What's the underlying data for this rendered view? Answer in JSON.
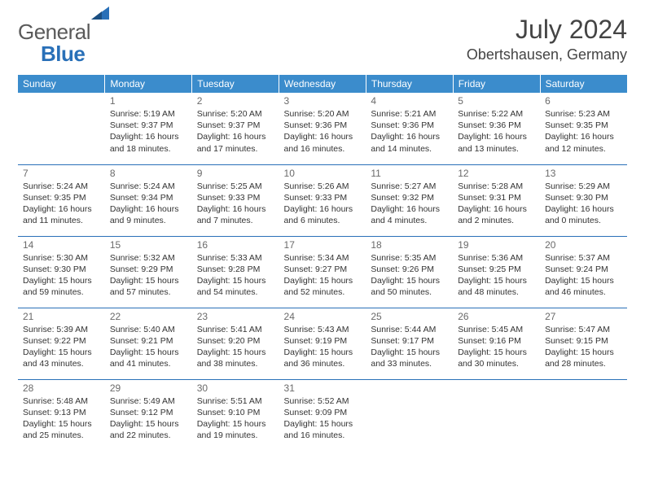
{
  "logo": {
    "general": "General",
    "blue": "Blue"
  },
  "title": "July 2024",
  "location": "Obertshausen, Germany",
  "header_bg": "#3b8ccc",
  "divider_color": "#2970b8",
  "weekdays": [
    "Sunday",
    "Monday",
    "Tuesday",
    "Wednesday",
    "Thursday",
    "Friday",
    "Saturday"
  ],
  "weeks": [
    [
      null,
      {
        "n": "1",
        "sr": "5:19 AM",
        "ss": "9:37 PM",
        "dl": "16 hours and 18 minutes."
      },
      {
        "n": "2",
        "sr": "5:20 AM",
        "ss": "9:37 PM",
        "dl": "16 hours and 17 minutes."
      },
      {
        "n": "3",
        "sr": "5:20 AM",
        "ss": "9:36 PM",
        "dl": "16 hours and 16 minutes."
      },
      {
        "n": "4",
        "sr": "5:21 AM",
        "ss": "9:36 PM",
        "dl": "16 hours and 14 minutes."
      },
      {
        "n": "5",
        "sr": "5:22 AM",
        "ss": "9:36 PM",
        "dl": "16 hours and 13 minutes."
      },
      {
        "n": "6",
        "sr": "5:23 AM",
        "ss": "9:35 PM",
        "dl": "16 hours and 12 minutes."
      }
    ],
    [
      {
        "n": "7",
        "sr": "5:24 AM",
        "ss": "9:35 PM",
        "dl": "16 hours and 11 minutes."
      },
      {
        "n": "8",
        "sr": "5:24 AM",
        "ss": "9:34 PM",
        "dl": "16 hours and 9 minutes."
      },
      {
        "n": "9",
        "sr": "5:25 AM",
        "ss": "9:33 PM",
        "dl": "16 hours and 7 minutes."
      },
      {
        "n": "10",
        "sr": "5:26 AM",
        "ss": "9:33 PM",
        "dl": "16 hours and 6 minutes."
      },
      {
        "n": "11",
        "sr": "5:27 AM",
        "ss": "9:32 PM",
        "dl": "16 hours and 4 minutes."
      },
      {
        "n": "12",
        "sr": "5:28 AM",
        "ss": "9:31 PM",
        "dl": "16 hours and 2 minutes."
      },
      {
        "n": "13",
        "sr": "5:29 AM",
        "ss": "9:30 PM",
        "dl": "16 hours and 0 minutes."
      }
    ],
    [
      {
        "n": "14",
        "sr": "5:30 AM",
        "ss": "9:30 PM",
        "dl": "15 hours and 59 minutes."
      },
      {
        "n": "15",
        "sr": "5:32 AM",
        "ss": "9:29 PM",
        "dl": "15 hours and 57 minutes."
      },
      {
        "n": "16",
        "sr": "5:33 AM",
        "ss": "9:28 PM",
        "dl": "15 hours and 54 minutes."
      },
      {
        "n": "17",
        "sr": "5:34 AM",
        "ss": "9:27 PM",
        "dl": "15 hours and 52 minutes."
      },
      {
        "n": "18",
        "sr": "5:35 AM",
        "ss": "9:26 PM",
        "dl": "15 hours and 50 minutes."
      },
      {
        "n": "19",
        "sr": "5:36 AM",
        "ss": "9:25 PM",
        "dl": "15 hours and 48 minutes."
      },
      {
        "n": "20",
        "sr": "5:37 AM",
        "ss": "9:24 PM",
        "dl": "15 hours and 46 minutes."
      }
    ],
    [
      {
        "n": "21",
        "sr": "5:39 AM",
        "ss": "9:22 PM",
        "dl": "15 hours and 43 minutes."
      },
      {
        "n": "22",
        "sr": "5:40 AM",
        "ss": "9:21 PM",
        "dl": "15 hours and 41 minutes."
      },
      {
        "n": "23",
        "sr": "5:41 AM",
        "ss": "9:20 PM",
        "dl": "15 hours and 38 minutes."
      },
      {
        "n": "24",
        "sr": "5:43 AM",
        "ss": "9:19 PM",
        "dl": "15 hours and 36 minutes."
      },
      {
        "n": "25",
        "sr": "5:44 AM",
        "ss": "9:17 PM",
        "dl": "15 hours and 33 minutes."
      },
      {
        "n": "26",
        "sr": "5:45 AM",
        "ss": "9:16 PM",
        "dl": "15 hours and 30 minutes."
      },
      {
        "n": "27",
        "sr": "5:47 AM",
        "ss": "9:15 PM",
        "dl": "15 hours and 28 minutes."
      }
    ],
    [
      {
        "n": "28",
        "sr": "5:48 AM",
        "ss": "9:13 PM",
        "dl": "15 hours and 25 minutes."
      },
      {
        "n": "29",
        "sr": "5:49 AM",
        "ss": "9:12 PM",
        "dl": "15 hours and 22 minutes."
      },
      {
        "n": "30",
        "sr": "5:51 AM",
        "ss": "9:10 PM",
        "dl": "15 hours and 19 minutes."
      },
      {
        "n": "31",
        "sr": "5:52 AM",
        "ss": "9:09 PM",
        "dl": "15 hours and 16 minutes."
      },
      null,
      null,
      null
    ]
  ],
  "labels": {
    "sunrise": "Sunrise: ",
    "sunset": "Sunset: ",
    "daylight": "Daylight: "
  }
}
